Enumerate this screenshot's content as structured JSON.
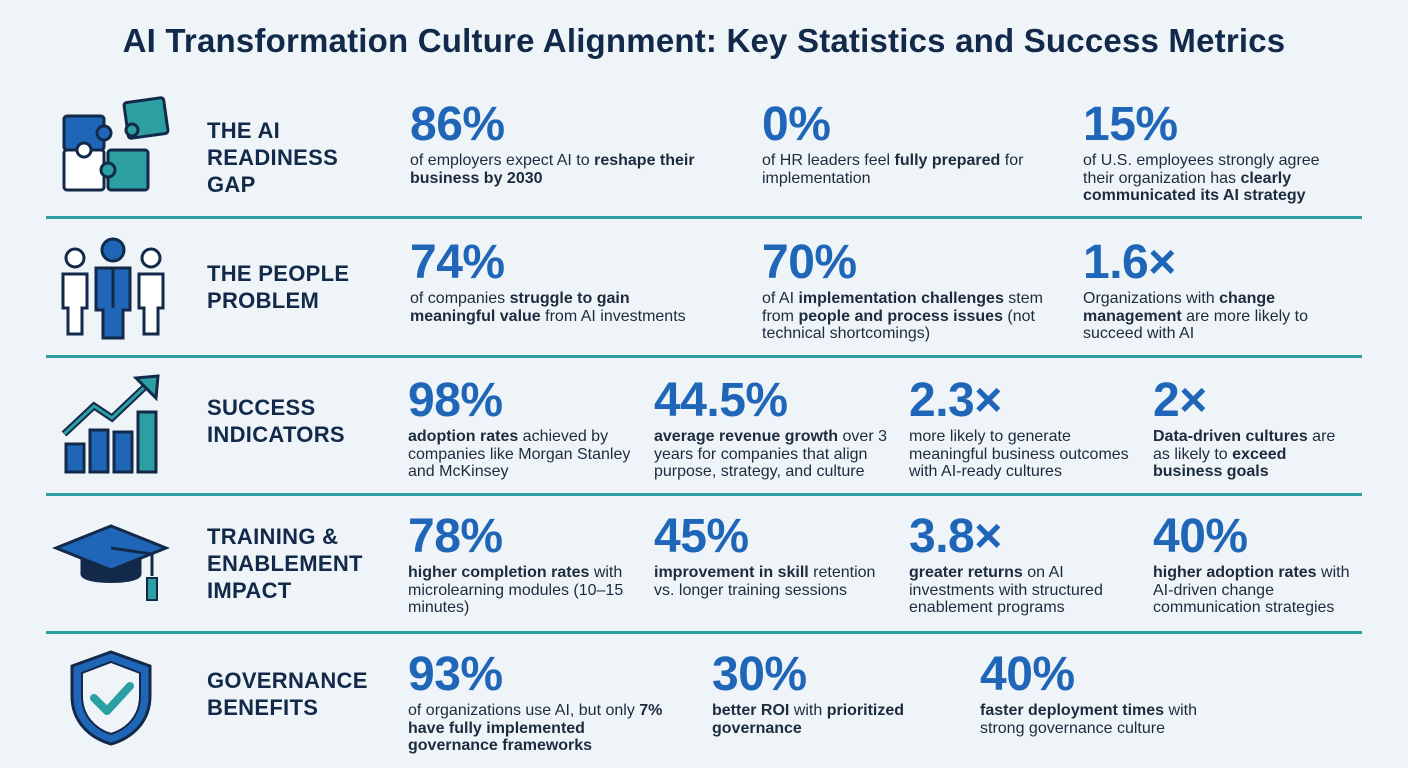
{
  "title": "AI Transformation Culture Alignment: Key Statistics and Success Metrics",
  "colors": {
    "navy": "#13294a",
    "blue": "#1f66b8",
    "teal": "#2b9fa2",
    "bg": "#eef4f7"
  },
  "rows": [
    {
      "icon": "puzzle-icon",
      "label": [
        "THE AI",
        "READINESS",
        "GAP"
      ],
      "stats": [
        {
          "value": "86%",
          "desc": [
            [
              "of employers expect AI to ",
              ""
            ],
            [
              "reshape their business by 2030",
              "b"
            ]
          ]
        },
        {
          "value": "0%",
          "desc": [
            [
              "of HR leaders feel ",
              ""
            ],
            [
              "fully prepared",
              "b"
            ],
            [
              " for implementation",
              ""
            ]
          ]
        },
        {
          "value": "15%",
          "desc": [
            [
              "of U.S. employees strongly agree their organization has ",
              ""
            ],
            [
              "clearly communicated its AI strategy",
              "b"
            ]
          ]
        }
      ]
    },
    {
      "icon": "people-icon",
      "label": [
        "THE PEOPLE",
        "PROBLEM"
      ],
      "stats": [
        {
          "value": "74%",
          "desc": [
            [
              "of companies ",
              ""
            ],
            [
              "struggle to gain meaningful value",
              "b"
            ],
            [
              " from AI investments",
              ""
            ]
          ]
        },
        {
          "value": "70%",
          "desc": [
            [
              "of AI ",
              ""
            ],
            [
              "implementation challenges",
              "b"
            ],
            [
              " stem from ",
              ""
            ],
            [
              "people and process issues",
              "b"
            ],
            [
              " (not technical shortcomings)",
              ""
            ]
          ]
        },
        {
          "value": "1.6×",
          "desc": [
            [
              "Organizations with ",
              ""
            ],
            [
              "change management",
              "b"
            ],
            [
              " are more likely to succeed with AI",
              ""
            ]
          ]
        }
      ]
    },
    {
      "icon": "growth-chart-icon",
      "label": [
        "SUCCESS",
        "INDICATORS"
      ],
      "stats": [
        {
          "value": "98%",
          "desc": [
            [
              "adoption rates",
              "b"
            ],
            [
              " achieved by companies like Morgan Stanley and McKinsey",
              ""
            ]
          ]
        },
        {
          "value": "44.5%",
          "desc": [
            [
              "average revenue growth",
              "b"
            ],
            [
              " over 3 years for companies that align purpose, strategy, and culture",
              ""
            ]
          ]
        },
        {
          "value": "2.3×",
          "desc": [
            [
              "more likely to generate meaningful business outcomes with AI-ready cultures",
              ""
            ]
          ]
        },
        {
          "value": "2×",
          "desc": [
            [
              "Data-driven cultures",
              "b"
            ],
            [
              " are as likely to ",
              ""
            ],
            [
              "exceed business goals",
              "b"
            ]
          ]
        }
      ]
    },
    {
      "icon": "graduation-cap-icon",
      "label": [
        "TRAINING &",
        "ENABLEMENT",
        "IMPACT"
      ],
      "stats": [
        {
          "value": "78%",
          "desc": [
            [
              "higher completion rates",
              "b"
            ],
            [
              " with microlearning modules (10–15 minutes)",
              ""
            ]
          ]
        },
        {
          "value": "45%",
          "desc": [
            [
              "improvement in skill",
              "b"
            ],
            [
              " retention vs. longer training sessions",
              ""
            ]
          ]
        },
        {
          "value": "3.8×",
          "desc": [
            [
              "greater returns",
              "b"
            ],
            [
              " on AI investments with structured enablement programs",
              ""
            ]
          ]
        },
        {
          "value": "40%",
          "desc": [
            [
              "higher adoption rates",
              "b"
            ],
            [
              " with AI-driven change communication strategies",
              ""
            ]
          ]
        }
      ]
    },
    {
      "icon": "shield-check-icon",
      "label": [
        "GOVERNANCE",
        "BENEFITS"
      ],
      "stats": [
        {
          "value": "93%",
          "desc": [
            [
              "of organizations use AI, but only ",
              ""
            ],
            [
              "7% have fully implemented governance frameworks",
              "b"
            ]
          ]
        },
        {
          "value": "30%",
          "desc": [
            [
              "better ROI",
              "b"
            ],
            [
              " with ",
              ""
            ],
            [
              "prioritized governance",
              "b"
            ]
          ]
        },
        {
          "value": "40%",
          "desc": [
            [
              "faster deployment times",
              "b"
            ],
            [
              " with strong governance culture",
              ""
            ]
          ]
        }
      ]
    }
  ]
}
